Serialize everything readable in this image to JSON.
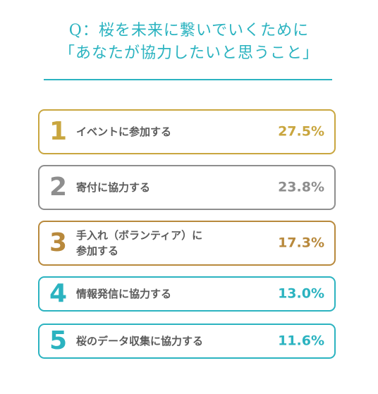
{
  "title": {
    "line1": "Q：桜を未来に繋いでいくために",
    "line2": "「あなたが協力したいと思うこと」"
  },
  "chart_data": {
    "type": "table",
    "unit": "%",
    "items": [
      {
        "rank": "1",
        "label": "イベントに参加する",
        "value": 27.5,
        "value_label": "27.5%",
        "color": "#c9a63f"
      },
      {
        "rank": "2",
        "label": "寄付に協力する",
        "value": 23.8,
        "value_label": "23.8%",
        "color": "#8e8e8e"
      },
      {
        "rank": "3",
        "label": "手入れ（ボランティア）に\n参加する",
        "value": 17.3,
        "value_label": "17.3%",
        "color": "#b8893c"
      },
      {
        "rank": "4",
        "label": "情報発信に協力する",
        "value": 13.0,
        "value_label": "13.0%",
        "color": "#2bb3c0"
      },
      {
        "rank": "5",
        "label": "桜のデータ収集に協力する",
        "value": 11.6,
        "value_label": "11.6%",
        "color": "#2bb3c0"
      }
    ]
  }
}
